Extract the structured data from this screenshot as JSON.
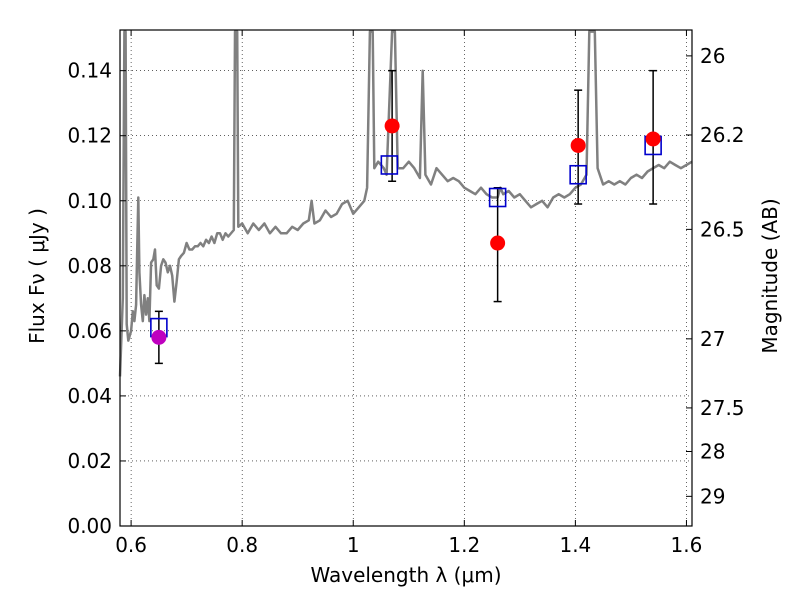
{
  "chart_data": {
    "type": "scatter",
    "xlabel": "Wavelength  λ (μm)",
    "ylabel": "Flux  Fν  ( μJy )",
    "ylabel_right": "Magnitude (AB)",
    "xlim": [
      0.58,
      1.61
    ],
    "ylim": [
      0.0,
      0.1525
    ],
    "grid": true,
    "x_ticks": [
      0.6,
      0.8,
      1.0,
      1.2,
      1.4,
      1.6
    ],
    "x_tick_labels": [
      "0.6",
      "0.8",
      "1",
      "1.2",
      "1.4",
      "1.6"
    ],
    "y_ticks": [
      0.0,
      0.02,
      0.04,
      0.06,
      0.08,
      0.1,
      0.12,
      0.14
    ],
    "y_tick_labels": [
      "0.00",
      "0.02",
      "0.04",
      "0.06",
      "0.08",
      "0.10",
      "0.12",
      "0.14"
    ],
    "mag_ticks": [
      {
        "mag": 26,
        "label": "26"
      },
      {
        "mag": 26.2,
        "label": "26.2"
      },
      {
        "mag": 26.5,
        "label": "26.5"
      },
      {
        "mag": 27,
        "label": "27"
      },
      {
        "mag": 27.5,
        "label": "27.5"
      },
      {
        "mag": 28,
        "label": "28"
      },
      {
        "mag": 29,
        "label": "29"
      }
    ],
    "colors": {
      "model": "#808080",
      "observed": "#ff0000",
      "observed_special": "#bf00bf",
      "synthetic": "#0000cc",
      "errorbar": "#000000"
    },
    "series": [
      {
        "kind": "line",
        "points": [
          [
            0.58,
            0.046
          ],
          [
            0.585,
            0.07
          ],
          [
            0.588,
            0.152
          ],
          [
            0.59,
            0.152
          ],
          [
            0.592,
            0.062
          ],
          [
            0.595,
            0.057
          ],
          [
            0.6,
            0.06
          ],
          [
            0.603,
            0.066
          ],
          [
            0.606,
            0.063
          ],
          [
            0.609,
            0.068
          ],
          [
            0.611,
            0.085
          ],
          [
            0.613,
            0.101
          ],
          [
            0.615,
            0.078
          ],
          [
            0.618,
            0.068
          ],
          [
            0.621,
            0.063
          ],
          [
            0.624,
            0.071
          ],
          [
            0.627,
            0.065
          ],
          [
            0.63,
            0.07
          ],
          [
            0.633,
            0.063
          ],
          [
            0.636,
            0.081
          ],
          [
            0.64,
            0.082
          ],
          [
            0.643,
            0.085
          ],
          [
            0.646,
            0.074
          ],
          [
            0.65,
            0.073
          ],
          [
            0.654,
            0.08
          ],
          [
            0.658,
            0.082
          ],
          [
            0.662,
            0.081
          ],
          [
            0.666,
            0.078
          ],
          [
            0.67,
            0.08
          ],
          [
            0.674,
            0.077
          ],
          [
            0.678,
            0.069
          ],
          [
            0.682,
            0.075
          ],
          [
            0.686,
            0.082
          ],
          [
            0.69,
            0.083
          ],
          [
            0.695,
            0.084
          ],
          [
            0.7,
            0.087
          ],
          [
            0.705,
            0.085
          ],
          [
            0.71,
            0.085
          ],
          [
            0.715,
            0.086
          ],
          [
            0.72,
            0.086
          ],
          [
            0.725,
            0.087
          ],
          [
            0.73,
            0.086
          ],
          [
            0.735,
            0.088
          ],
          [
            0.74,
            0.087
          ],
          [
            0.745,
            0.089
          ],
          [
            0.75,
            0.087
          ],
          [
            0.755,
            0.09
          ],
          [
            0.76,
            0.09
          ],
          [
            0.765,
            0.088
          ],
          [
            0.77,
            0.09
          ],
          [
            0.775,
            0.089
          ],
          [
            0.785,
            0.091
          ],
          [
            0.787,
            0.152
          ],
          [
            0.791,
            0.152
          ],
          [
            0.793,
            0.092
          ],
          [
            0.8,
            0.093
          ],
          [
            0.81,
            0.09
          ],
          [
            0.82,
            0.093
          ],
          [
            0.83,
            0.091
          ],
          [
            0.84,
            0.093
          ],
          [
            0.85,
            0.09
          ],
          [
            0.86,
            0.092
          ],
          [
            0.87,
            0.09
          ],
          [
            0.88,
            0.09
          ],
          [
            0.89,
            0.092
          ],
          [
            0.9,
            0.091
          ],
          [
            0.91,
            0.093
          ],
          [
            0.92,
            0.094
          ],
          [
            0.925,
            0.1
          ],
          [
            0.93,
            0.093
          ],
          [
            0.94,
            0.094
          ],
          [
            0.95,
            0.097
          ],
          [
            0.96,
            0.095
          ],
          [
            0.97,
            0.096
          ],
          [
            0.98,
            0.099
          ],
          [
            0.99,
            0.1
          ],
          [
            1.0,
            0.096
          ],
          [
            1.01,
            0.098
          ],
          [
            1.02,
            0.1
          ],
          [
            1.025,
            0.104
          ],
          [
            1.03,
            0.152
          ],
          [
            1.035,
            0.152
          ],
          [
            1.038,
            0.11
          ],
          [
            1.045,
            0.112
          ],
          [
            1.055,
            0.11
          ],
          [
            1.06,
            0.108
          ],
          [
            1.07,
            0.152
          ],
          [
            1.075,
            0.152
          ],
          [
            1.08,
            0.11
          ],
          [
            1.09,
            0.11
          ],
          [
            1.1,
            0.112
          ],
          [
            1.11,
            0.11
          ],
          [
            1.12,
            0.107
          ],
          [
            1.125,
            0.14
          ],
          [
            1.13,
            0.108
          ],
          [
            1.14,
            0.105
          ],
          [
            1.15,
            0.11
          ],
          [
            1.16,
            0.108
          ],
          [
            1.17,
            0.106
          ],
          [
            1.18,
            0.107
          ],
          [
            1.19,
            0.106
          ],
          [
            1.2,
            0.104
          ],
          [
            1.21,
            0.103
          ],
          [
            1.22,
            0.102
          ],
          [
            1.23,
            0.104
          ],
          [
            1.24,
            0.102
          ],
          [
            1.25,
            0.101
          ],
          [
            1.26,
            0.101
          ],
          [
            1.265,
            0.104
          ],
          [
            1.27,
            0.102
          ],
          [
            1.28,
            0.103
          ],
          [
            1.29,
            0.101
          ],
          [
            1.3,
            0.102
          ],
          [
            1.31,
            0.1
          ],
          [
            1.32,
            0.098
          ],
          [
            1.33,
            0.099
          ],
          [
            1.34,
            0.1
          ],
          [
            1.35,
            0.098
          ],
          [
            1.36,
            0.101
          ],
          [
            1.37,
            0.102
          ],
          [
            1.38,
            0.101
          ],
          [
            1.39,
            0.102
          ],
          [
            1.4,
            0.104
          ],
          [
            1.41,
            0.105
          ],
          [
            1.42,
            0.108
          ],
          [
            1.425,
            0.152
          ],
          [
            1.435,
            0.152
          ],
          [
            1.44,
            0.11
          ],
          [
            1.45,
            0.105
          ],
          [
            1.46,
            0.106
          ],
          [
            1.47,
            0.105
          ],
          [
            1.48,
            0.106
          ],
          [
            1.49,
            0.105
          ],
          [
            1.5,
            0.107
          ],
          [
            1.51,
            0.108
          ],
          [
            1.52,
            0.107
          ],
          [
            1.53,
            0.109
          ],
          [
            1.54,
            0.11
          ],
          [
            1.55,
            0.111
          ],
          [
            1.56,
            0.11
          ],
          [
            1.57,
            0.112
          ],
          [
            1.58,
            0.111
          ],
          [
            1.59,
            0.11
          ],
          [
            1.6,
            0.111
          ],
          [
            1.61,
            0.112
          ]
        ]
      },
      {
        "kind": "observed",
        "points": [
          {
            "x": 0.65,
            "y": 0.058,
            "ylo": 0.05,
            "yhi": 0.066,
            "special": true
          },
          {
            "x": 1.07,
            "y": 0.123,
            "ylo": 0.106,
            "yhi": 0.14,
            "special": false
          },
          {
            "x": 1.26,
            "y": 0.087,
            "ylo": 0.069,
            "yhi": 0.104,
            "special": false
          },
          {
            "x": 1.405,
            "y": 0.117,
            "ylo": 0.099,
            "yhi": 0.134,
            "special": false
          },
          {
            "x": 1.54,
            "y": 0.119,
            "ylo": 0.099,
            "yhi": 0.14,
            "special": false
          }
        ]
      },
      {
        "kind": "synthetic",
        "points": [
          {
            "x": 0.65,
            "y": 0.061
          },
          {
            "x": 1.065,
            "y": 0.111
          },
          {
            "x": 1.26,
            "y": 0.101
          },
          {
            "x": 1.405,
            "y": 0.108
          },
          {
            "x": 1.54,
            "y": 0.117
          }
        ]
      }
    ]
  }
}
